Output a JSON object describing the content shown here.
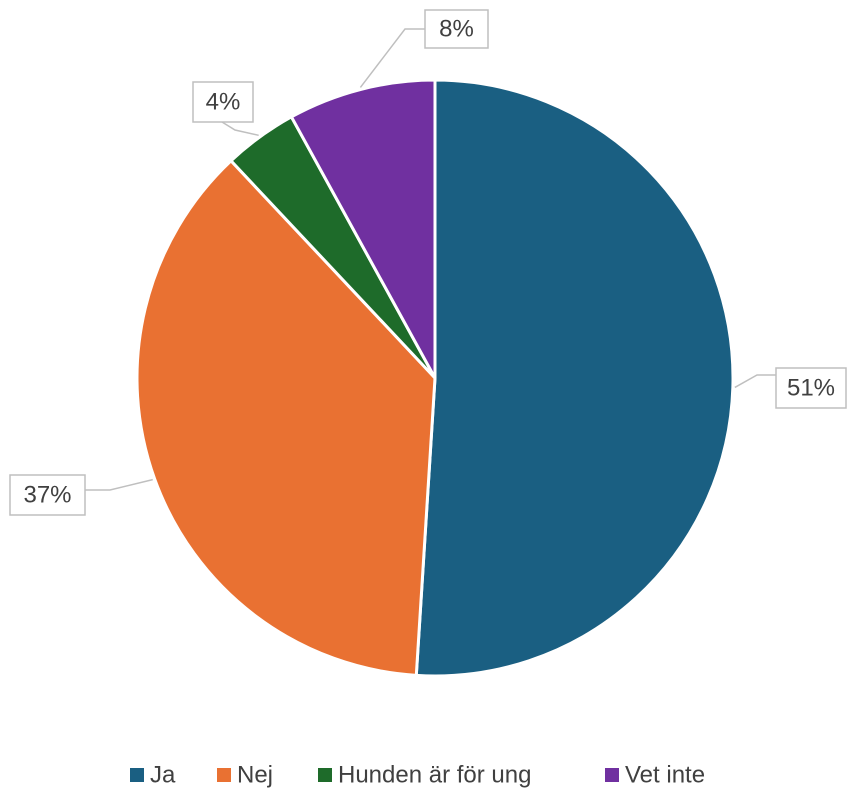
{
  "chart_data": {
    "type": "pie",
    "categories": [
      "Ja",
      "Nej",
      "Hunden är för ung",
      "Vet inte"
    ],
    "values": [
      51,
      37,
      4,
      8
    ],
    "value_labels": [
      "51%",
      "37%",
      "4%",
      "8%"
    ],
    "colors": [
      "#1a5f82",
      "#e97132",
      "#1e6b2a",
      "#7030a0"
    ],
    "legend": "bottom"
  }
}
